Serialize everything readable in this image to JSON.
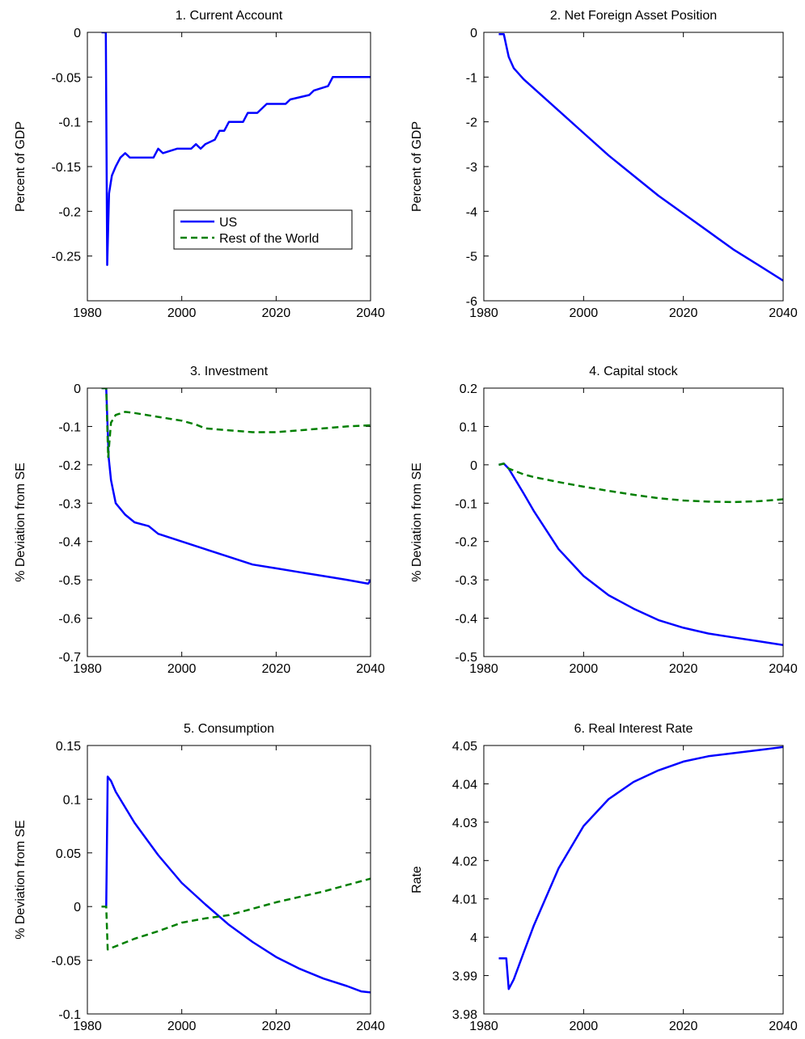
{
  "series_styles": {
    "US": {
      "color": "#0000ff",
      "dash": ""
    },
    "Rest of the World": {
      "color": "#007f00",
      "dash": "8,5"
    }
  },
  "chart_data": [
    {
      "type": "line",
      "title": "1. Current Account",
      "xlabel": "",
      "ylabel": "Percent of GDP",
      "xlim": [
        1980,
        2040
      ],
      "ylim": [
        -0.3,
        0
      ],
      "xticks": [
        1980,
        2000,
        2020,
        2040
      ],
      "yticks": [
        0,
        -0.05,
        -0.1,
        -0.15,
        -0.2,
        -0.25
      ],
      "ytick_labels": [
        "0",
        "-0.05",
        "-0.1",
        "-0.15",
        "-0.2",
        "-0.25"
      ],
      "legend": {
        "position": "inside-center-right",
        "entries": [
          "US",
          "Rest of the World"
        ]
      },
      "series": [
        {
          "name": "US",
          "x": [
            1983,
            1983.9,
            1984.2,
            1984.6,
            1985.2,
            1986,
            1987,
            1988,
            1989,
            1994,
            1995,
            1996,
            1999,
            2002,
            2003,
            2004,
            2005,
            2007,
            2008,
            2009,
            2010,
            2013,
            2014,
            2016,
            2017,
            2018,
            2022,
            2023,
            2027,
            2028,
            2031,
            2032,
            2040
          ],
          "y": [
            0,
            0,
            -0.26,
            -0.18,
            -0.16,
            -0.15,
            -0.14,
            -0.135,
            -0.14,
            -0.14,
            -0.13,
            -0.135,
            -0.13,
            -0.13,
            -0.125,
            -0.13,
            -0.125,
            -0.12,
            -0.11,
            -0.11,
            -0.1,
            -0.1,
            -0.09,
            -0.09,
            -0.085,
            -0.08,
            -0.08,
            -0.075,
            -0.07,
            -0.065,
            -0.06,
            -0.05,
            -0.05
          ]
        }
      ]
    },
    {
      "type": "line",
      "title": "2. Net Foreign Asset Position",
      "xlabel": "",
      "ylabel": "Percent of GDP",
      "xlim": [
        1980,
        2040
      ],
      "ylim": [
        -6,
        0
      ],
      "xticks": [
        1980,
        2000,
        2020,
        2040
      ],
      "yticks": [
        0,
        -1,
        -2,
        -3,
        -4,
        -5,
        -6
      ],
      "ytick_labels": [
        "0",
        "-1",
        "-2",
        "-3",
        "-4",
        "-5",
        "-6"
      ],
      "series": [
        {
          "name": "US",
          "x": [
            1983,
            1984,
            1984.5,
            1985,
            1986,
            1988,
            1990,
            1995,
            2000,
            2005,
            2010,
            2015,
            2020,
            2025,
            2030,
            2035,
            2040
          ],
          "y": [
            -0.04,
            -0.04,
            -0.3,
            -0.55,
            -0.8,
            -1.05,
            -1.25,
            -1.75,
            -2.25,
            -2.75,
            -3.2,
            -3.65,
            -4.05,
            -4.45,
            -4.85,
            -5.2,
            -5.55
          ]
        }
      ]
    },
    {
      "type": "line",
      "title": "3. Investment",
      "xlabel": "",
      "ylabel": "% Deviation from SE",
      "xlim": [
        1980,
        2040
      ],
      "ylim": [
        -0.7,
        0
      ],
      "xticks": [
        1980,
        2000,
        2020,
        2040
      ],
      "yticks": [
        0,
        -0.1,
        -0.2,
        -0.3,
        -0.4,
        -0.5,
        -0.6,
        -0.7
      ],
      "ytick_labels": [
        "0",
        "-0.1",
        "-0.2",
        "-0.3",
        "-0.4",
        "-0.5",
        "-0.6",
        "-0.7"
      ],
      "series": [
        {
          "name": "US",
          "x": [
            1983,
            1984,
            1984.5,
            1985,
            1986,
            1988,
            1990,
            1993,
            1995,
            2000,
            2005,
            2010,
            2015,
            2020,
            2025,
            2030,
            2035,
            2039.5,
            2040
          ],
          "y": [
            0,
            0,
            -0.18,
            -0.24,
            -0.3,
            -0.33,
            -0.35,
            -0.36,
            -0.38,
            -0.4,
            -0.42,
            -0.44,
            -0.46,
            -0.47,
            -0.48,
            -0.49,
            -0.5,
            -0.51,
            -0.5
          ]
        },
        {
          "name": "Rest of the World",
          "x": [
            1983,
            1984,
            1984.4,
            1985,
            1986,
            1988,
            1990,
            1995,
            2000,
            2003,
            2005,
            2010,
            2015,
            2020,
            2025,
            2030,
            2035,
            2040
          ],
          "y": [
            0,
            0,
            -0.18,
            -0.09,
            -0.07,
            -0.062,
            -0.065,
            -0.075,
            -0.085,
            -0.095,
            -0.105,
            -0.11,
            -0.115,
            -0.115,
            -0.11,
            -0.105,
            -0.1,
            -0.097
          ]
        }
      ]
    },
    {
      "type": "line",
      "title": "4. Capital stock",
      "xlabel": "",
      "ylabel": "% Deviation from SE",
      "xlim": [
        1980,
        2040
      ],
      "ylim": [
        -0.5,
        0.2
      ],
      "xticks": [
        1980,
        2000,
        2020,
        2040
      ],
      "yticks": [
        0.2,
        0.1,
        0,
        -0.1,
        -0.2,
        -0.3,
        -0.4,
        -0.5
      ],
      "ytick_labels": [
        "0.2",
        "0.1",
        "0",
        "-0.1",
        "-0.2",
        "-0.3",
        "-0.4",
        "-0.5"
      ],
      "series": [
        {
          "name": "US",
          "x": [
            1983,
            1984,
            1985,
            1988,
            1990,
            1995,
            2000,
            2005,
            2010,
            2015,
            2020,
            2025,
            2030,
            2035,
            2040
          ],
          "y": [
            0,
            0.003,
            -0.01,
            -0.075,
            -0.12,
            -0.22,
            -0.29,
            -0.34,
            -0.375,
            -0.405,
            -0.425,
            -0.44,
            -0.45,
            -0.46,
            -0.47
          ]
        },
        {
          "name": "Rest of the World",
          "x": [
            1983,
            1984,
            1985,
            1988,
            1990,
            1995,
            2000,
            2005,
            2010,
            2015,
            2020,
            2025,
            2030,
            2035,
            2040
          ],
          "y": [
            0,
            0.003,
            -0.01,
            -0.025,
            -0.032,
            -0.045,
            -0.057,
            -0.068,
            -0.078,
            -0.087,
            -0.093,
            -0.096,
            -0.097,
            -0.095,
            -0.09
          ]
        }
      ]
    },
    {
      "type": "line",
      "title": "5. Consumption",
      "xlabel": "",
      "ylabel": "% Deviation from SE",
      "xlim": [
        1980,
        2040
      ],
      "ylim": [
        -0.1,
        0.15
      ],
      "xticks": [
        1980,
        2000,
        2020,
        2040
      ],
      "yticks": [
        0.15,
        0.1,
        0.05,
        0,
        -0.05,
        -0.1
      ],
      "ytick_labels": [
        "0.15",
        "0.1",
        "0.05",
        "0",
        "-0.05",
        "-0.1"
      ],
      "series": [
        {
          "name": "US",
          "x": [
            1983,
            1984,
            1984.3,
            1985,
            1986,
            1990,
            1995,
            2000,
            2005,
            2010,
            2015,
            2020,
            2025,
            2030,
            2035,
            2038,
            2040
          ],
          "y": [
            0,
            0,
            0.121,
            0.117,
            0.107,
            0.078,
            0.048,
            0.022,
            0.002,
            -0.017,
            -0.033,
            -0.047,
            -0.058,
            -0.067,
            -0.074,
            -0.079,
            -0.08
          ]
        },
        {
          "name": "Rest of the World",
          "x": [
            1983,
            1984,
            1984.3,
            1986,
            1990,
            1995,
            2000,
            2005,
            2010,
            2015,
            2020,
            2025,
            2030,
            2035,
            2040
          ],
          "y": [
            0,
            0,
            -0.04,
            -0.037,
            -0.03,
            -0.023,
            -0.015,
            -0.011,
            -0.008,
            -0.002,
            0.004,
            0.009,
            0.014,
            0.02,
            0.026
          ]
        }
      ]
    },
    {
      "type": "line",
      "title": "6. Real Interest Rate",
      "xlabel": "",
      "ylabel": "Rate",
      "xlim": [
        1980,
        2040
      ],
      "ylim": [
        3.98,
        4.05
      ],
      "xticks": [
        1980,
        2000,
        2020,
        2040
      ],
      "yticks": [
        4.05,
        4.04,
        4.03,
        4.02,
        4.01,
        4,
        3.99,
        3.98
      ],
      "ytick_labels": [
        "4.05",
        "4.04",
        "4.03",
        "4.02",
        "4.01",
        "4",
        "3.99",
        "3.98"
      ],
      "series": [
        {
          "name": "US",
          "x": [
            1983,
            1984,
            1984.5,
            1985,
            1986,
            1988,
            1990,
            1995,
            2000,
            2005,
            2010,
            2015,
            2020,
            2025,
            2030,
            2035,
            2040
          ],
          "y": [
            3.9945,
            3.9945,
            3.9945,
            3.9865,
            3.989,
            3.996,
            4.003,
            4.018,
            4.029,
            4.036,
            4.0405,
            4.0435,
            4.0458,
            4.0472,
            4.048,
            4.0488,
            4.0496
          ]
        }
      ]
    }
  ]
}
